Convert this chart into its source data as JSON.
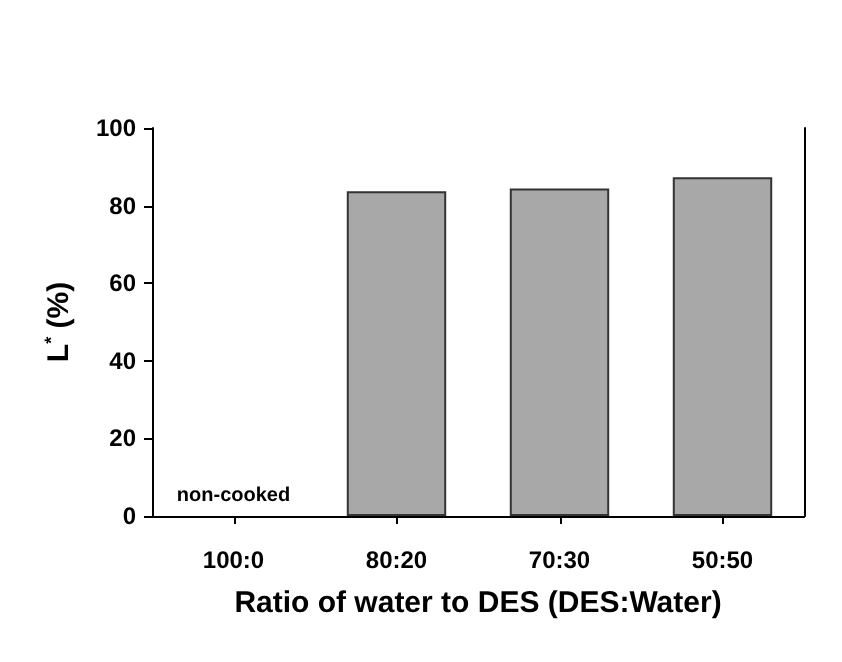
{
  "chart_data": {
    "type": "bar",
    "xlabel": "Ratio of water to DES (DES:Water)",
    "ylabel": "L$^{*}$ (%)",
    "categories": [
      "100:0",
      "80:20",
      "70:30",
      "50:50"
    ],
    "values": [
      null,
      83.7,
      84.4,
      87.3
    ],
    "color": "#a8a8a8",
    "ylim": [
      0,
      100
    ],
    "yticks": [
      0,
      20,
      40,
      60,
      80,
      100
    ],
    "grid": false,
    "annotations": [
      "non-cooked"
    ]
  }
}
